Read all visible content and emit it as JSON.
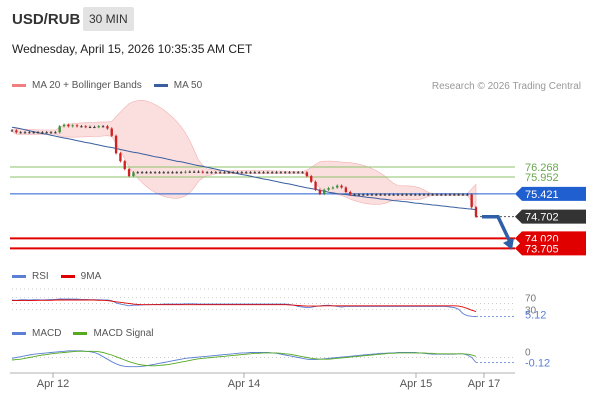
{
  "header": {
    "symbol": "USD/RUB",
    "interval": "30 MIN",
    "datetime": "Wednesday, April 15, 2026 10:35:35 AM CET"
  },
  "legend_main": [
    {
      "label": "MA 20 + Bollinger Bands",
      "color": "#f08080"
    },
    {
      "label": "MA 50",
      "color": "#3a5f9f"
    }
  ],
  "copyright": "Research © 2026 Trading Central",
  "legend_rsi": [
    {
      "label": "RSI",
      "color": "#5b7fd4"
    },
    {
      "label": "9MA",
      "color": "#e00000"
    }
  ],
  "legend_macd": [
    {
      "label": "MACD",
      "color": "#5b7fd4"
    },
    {
      "label": "MACD Signal",
      "color": "#55aa22"
    }
  ],
  "chart_data": [
    {
      "type": "candlestick",
      "name": "price",
      "x_ticks": [
        "Apr 12",
        "Apr 14",
        "Apr 15",
        "Apr 17"
      ],
      "price_levels": [
        {
          "label": "76.268",
          "value": 76.268,
          "color": "#8cc46b",
          "style": "resistance",
          "tag": "text"
        },
        {
          "label": "75.952",
          "value": 75.952,
          "color": "#8cc46b",
          "style": "resistance",
          "tag": "text"
        },
        {
          "label": "75.421",
          "value": 75.421,
          "color": "#1f5fd0",
          "style": "pivot",
          "tag": "box"
        },
        {
          "label": "74.702",
          "value": 74.702,
          "color": "#333333",
          "style": "last",
          "tag": "box"
        },
        {
          "label": "74.020",
          "value": 74.02,
          "color": "#e00000",
          "style": "support",
          "tag": "box"
        },
        {
          "label": "73.705",
          "value": 73.705,
          "color": "#e00000",
          "style": "support",
          "tag": "box"
        }
      ],
      "close": [
        77.42,
        77.36,
        77.36,
        77.36,
        77.36,
        77.36,
        77.36,
        77.36,
        77.36,
        77.36,
        77.36,
        77.55,
        77.6,
        77.55,
        77.58,
        77.55,
        77.55,
        77.53,
        77.53,
        77.53,
        77.55,
        77.55,
        77.48,
        77.25,
        76.7,
        76.45,
        76.2,
        75.98,
        76.1,
        76.1,
        76.1,
        76.1,
        76.1,
        76.1,
        76.1,
        76.1,
        76.1,
        76.1,
        76.1,
        76.1,
        76.12,
        76.12,
        76.12,
        76.12,
        76.1,
        76.1,
        76.1,
        76.1,
        76.1,
        76.1,
        76.1,
        76.1,
        76.1,
        76.1,
        76.1,
        76.1,
        76.1,
        76.1,
        76.1,
        76.1,
        76.1,
        76.1,
        76.1,
        76.1,
        76.1,
        76.1,
        76.1,
        76.1,
        75.98,
        75.8,
        75.55,
        75.42,
        75.55,
        75.6,
        75.62,
        75.68,
        75.62,
        75.48,
        75.4,
        75.4,
        75.4,
        75.4,
        75.4,
        75.4,
        75.4,
        75.4,
        75.4,
        75.4,
        75.4,
        75.4,
        75.4,
        75.4,
        75.4,
        75.4,
        75.4,
        75.4,
        75.4,
        75.4,
        75.4,
        75.4,
        75.4,
        75.4,
        75.4,
        75.4,
        75.4,
        75.4,
        75.0,
        74.7
      ],
      "ma50": [
        77.52,
        77.5,
        77.47,
        77.44,
        77.41,
        77.38,
        77.35,
        77.32,
        77.3,
        77.27,
        77.24,
        77.21,
        77.18,
        77.16,
        77.13,
        77.1,
        77.07,
        77.04,
        77.02,
        76.99,
        76.96,
        76.93,
        76.9,
        76.88,
        76.85,
        76.82,
        76.79,
        76.76,
        76.73,
        76.71,
        76.68,
        76.65,
        76.62,
        76.59,
        76.57,
        76.54,
        76.51,
        76.48,
        76.45,
        76.43,
        76.4,
        76.37,
        76.34,
        76.31,
        76.29,
        76.26,
        76.23,
        76.2,
        76.17,
        76.15,
        76.12,
        76.09,
        76.06,
        76.03,
        76.01,
        75.98,
        75.95,
        75.92,
        75.89,
        75.87,
        75.84,
        75.81,
        75.78,
        75.75,
        75.73,
        75.7,
        75.67,
        75.64,
        75.61,
        75.59,
        75.56,
        75.53,
        75.5,
        75.47,
        75.45,
        75.43,
        75.41,
        75.4,
        75.38,
        75.36,
        75.35,
        75.33,
        75.31,
        75.3,
        75.28,
        75.26,
        75.25,
        75.23,
        75.21,
        75.2,
        75.18,
        75.17,
        75.15,
        75.13,
        75.12,
        75.1,
        75.09,
        75.07,
        75.06,
        75.04,
        75.03,
        75.01,
        75.0,
        74.98,
        74.97,
        74.95,
        74.94,
        74.92
      ],
      "y_range": [
        73.4,
        78.0
      ]
    },
    {
      "type": "line",
      "name": "RSI",
      "levels": [
        {
          "label": "70",
          "value": 70
        },
        {
          "label": "30",
          "value": 30
        }
      ],
      "last_value_label": "5.12",
      "series": [
        {
          "name": "RSI",
          "values": [
            62,
            61,
            63,
            63,
            62,
            63,
            63,
            62,
            63,
            64,
            64,
            66,
            65,
            66,
            65,
            65,
            64,
            64,
            63,
            63,
            63,
            62,
            62,
            60,
            52,
            48,
            45,
            42,
            44,
            44,
            45,
            46,
            46,
            47,
            47,
            48,
            48,
            48,
            48,
            48,
            49,
            49,
            49,
            48,
            48,
            48,
            48,
            48,
            48,
            48,
            48,
            48,
            48,
            48,
            48,
            48,
            48,
            48,
            48,
            48,
            48,
            48,
            48,
            48,
            47,
            44,
            40,
            38,
            36,
            37,
            40,
            42,
            43,
            44,
            42,
            40,
            38,
            40,
            40,
            40,
            40,
            40,
            40,
            40,
            40,
            40,
            40,
            40,
            40,
            40,
            40,
            40,
            40,
            40,
            40,
            40,
            40,
            40,
            40,
            40,
            40,
            38,
            36,
            30,
            15,
            8,
            6,
            5.12
          ]
        },
        {
          "name": "9MA",
          "values": [
            60,
            60,
            60,
            60,
            60,
            60,
            61,
            61,
            61,
            61,
            62,
            62,
            62,
            62,
            62,
            62,
            62,
            62,
            62,
            62,
            61,
            61,
            60,
            58,
            56,
            54,
            52,
            50,
            48,
            47,
            46,
            46,
            46,
            46,
            46,
            46,
            46,
            46,
            46,
            46,
            46,
            46,
            46,
            46,
            46,
            46,
            46,
            46,
            46,
            46,
            46,
            46,
            46,
            46,
            46,
            46,
            46,
            46,
            46,
            46,
            46,
            46,
            46,
            46,
            45,
            44,
            43,
            42,
            41,
            41,
            41,
            41,
            42,
            42,
            42,
            42,
            42,
            42,
            42,
            42,
            42,
            42,
            42,
            42,
            42,
            42,
            42,
            42,
            42,
            42,
            42,
            42,
            42,
            42,
            42,
            42,
            42,
            42,
            42,
            42,
            42,
            42,
            42,
            41,
            38,
            33,
            27,
            22
          ]
        }
      ],
      "y_range": [
        0,
        100
      ]
    },
    {
      "type": "line",
      "name": "MACD",
      "levels": [
        {
          "label": "0",
          "value": 0
        }
      ],
      "last_value_label": "-0.12",
      "series": [
        {
          "name": "MACD",
          "values": [
            -0.02,
            0.0,
            0.02,
            0.04,
            0.06,
            0.08,
            0.09,
            0.1,
            0.11,
            0.12,
            0.13,
            0.14,
            0.15,
            0.16,
            0.16,
            0.16,
            0.16,
            0.15,
            0.14,
            0.12,
            0.08,
            0.02,
            -0.04,
            -0.1,
            -0.15,
            -0.19,
            -0.21,
            -0.22,
            -0.22,
            -0.22,
            -0.21,
            -0.2,
            -0.18,
            -0.16,
            -0.14,
            -0.12,
            -0.1,
            -0.08,
            -0.06,
            -0.04,
            -0.02,
            -0.01,
            0.0,
            0.01,
            0.02,
            0.03,
            0.04,
            0.05,
            0.06,
            0.07,
            0.08,
            0.09,
            0.1,
            0.11,
            0.11,
            0.12,
            0.12,
            0.12,
            0.12,
            0.12,
            0.11,
            0.1,
            0.08,
            0.06,
            0.04,
            0.02,
            0.0,
            -0.02,
            -0.04,
            -0.05,
            -0.05,
            -0.04,
            -0.03,
            -0.02,
            -0.01,
            0.0,
            0.01,
            0.02,
            0.03,
            0.04,
            0.05,
            0.06,
            0.07,
            0.08,
            0.09,
            0.1,
            0.1,
            0.11,
            0.11,
            0.12,
            0.12,
            0.12,
            0.12,
            0.12,
            0.11,
            0.1,
            0.09,
            0.08,
            0.08,
            0.08,
            0.08,
            0.08,
            0.08,
            0.09,
            0.09,
            0.06,
            0.0,
            -0.12
          ]
        },
        {
          "name": "MACD Signal",
          "values": [
            -0.06,
            -0.05,
            -0.04,
            -0.02,
            0.0,
            0.02,
            0.04,
            0.06,
            0.07,
            0.09,
            0.1,
            0.11,
            0.12,
            0.13,
            0.14,
            0.15,
            0.15,
            0.15,
            0.15,
            0.15,
            0.14,
            0.12,
            0.09,
            0.06,
            0.02,
            -0.02,
            -0.06,
            -0.1,
            -0.13,
            -0.16,
            -0.18,
            -0.19,
            -0.2,
            -0.2,
            -0.19,
            -0.18,
            -0.17,
            -0.15,
            -0.13,
            -0.11,
            -0.09,
            -0.07,
            -0.05,
            -0.03,
            -0.02,
            -0.01,
            0.0,
            0.01,
            0.02,
            0.03,
            0.04,
            0.05,
            0.06,
            0.07,
            0.08,
            0.09,
            0.1,
            0.1,
            0.11,
            0.11,
            0.11,
            0.11,
            0.1,
            0.09,
            0.08,
            0.06,
            0.04,
            0.02,
            0.0,
            -0.02,
            -0.03,
            -0.04,
            -0.04,
            -0.04,
            -0.03,
            -0.02,
            -0.01,
            0.0,
            0.01,
            0.02,
            0.03,
            0.04,
            0.05,
            0.06,
            0.07,
            0.08,
            0.09,
            0.1,
            0.1,
            0.11,
            0.11,
            0.11,
            0.11,
            0.11,
            0.11,
            0.11,
            0.1,
            0.1,
            0.09,
            0.09,
            0.09,
            0.09,
            0.09,
            0.09,
            0.09,
            0.08,
            0.06,
            0.03
          ]
        }
      ],
      "y_range": [
        -0.3,
        0.3
      ]
    }
  ]
}
